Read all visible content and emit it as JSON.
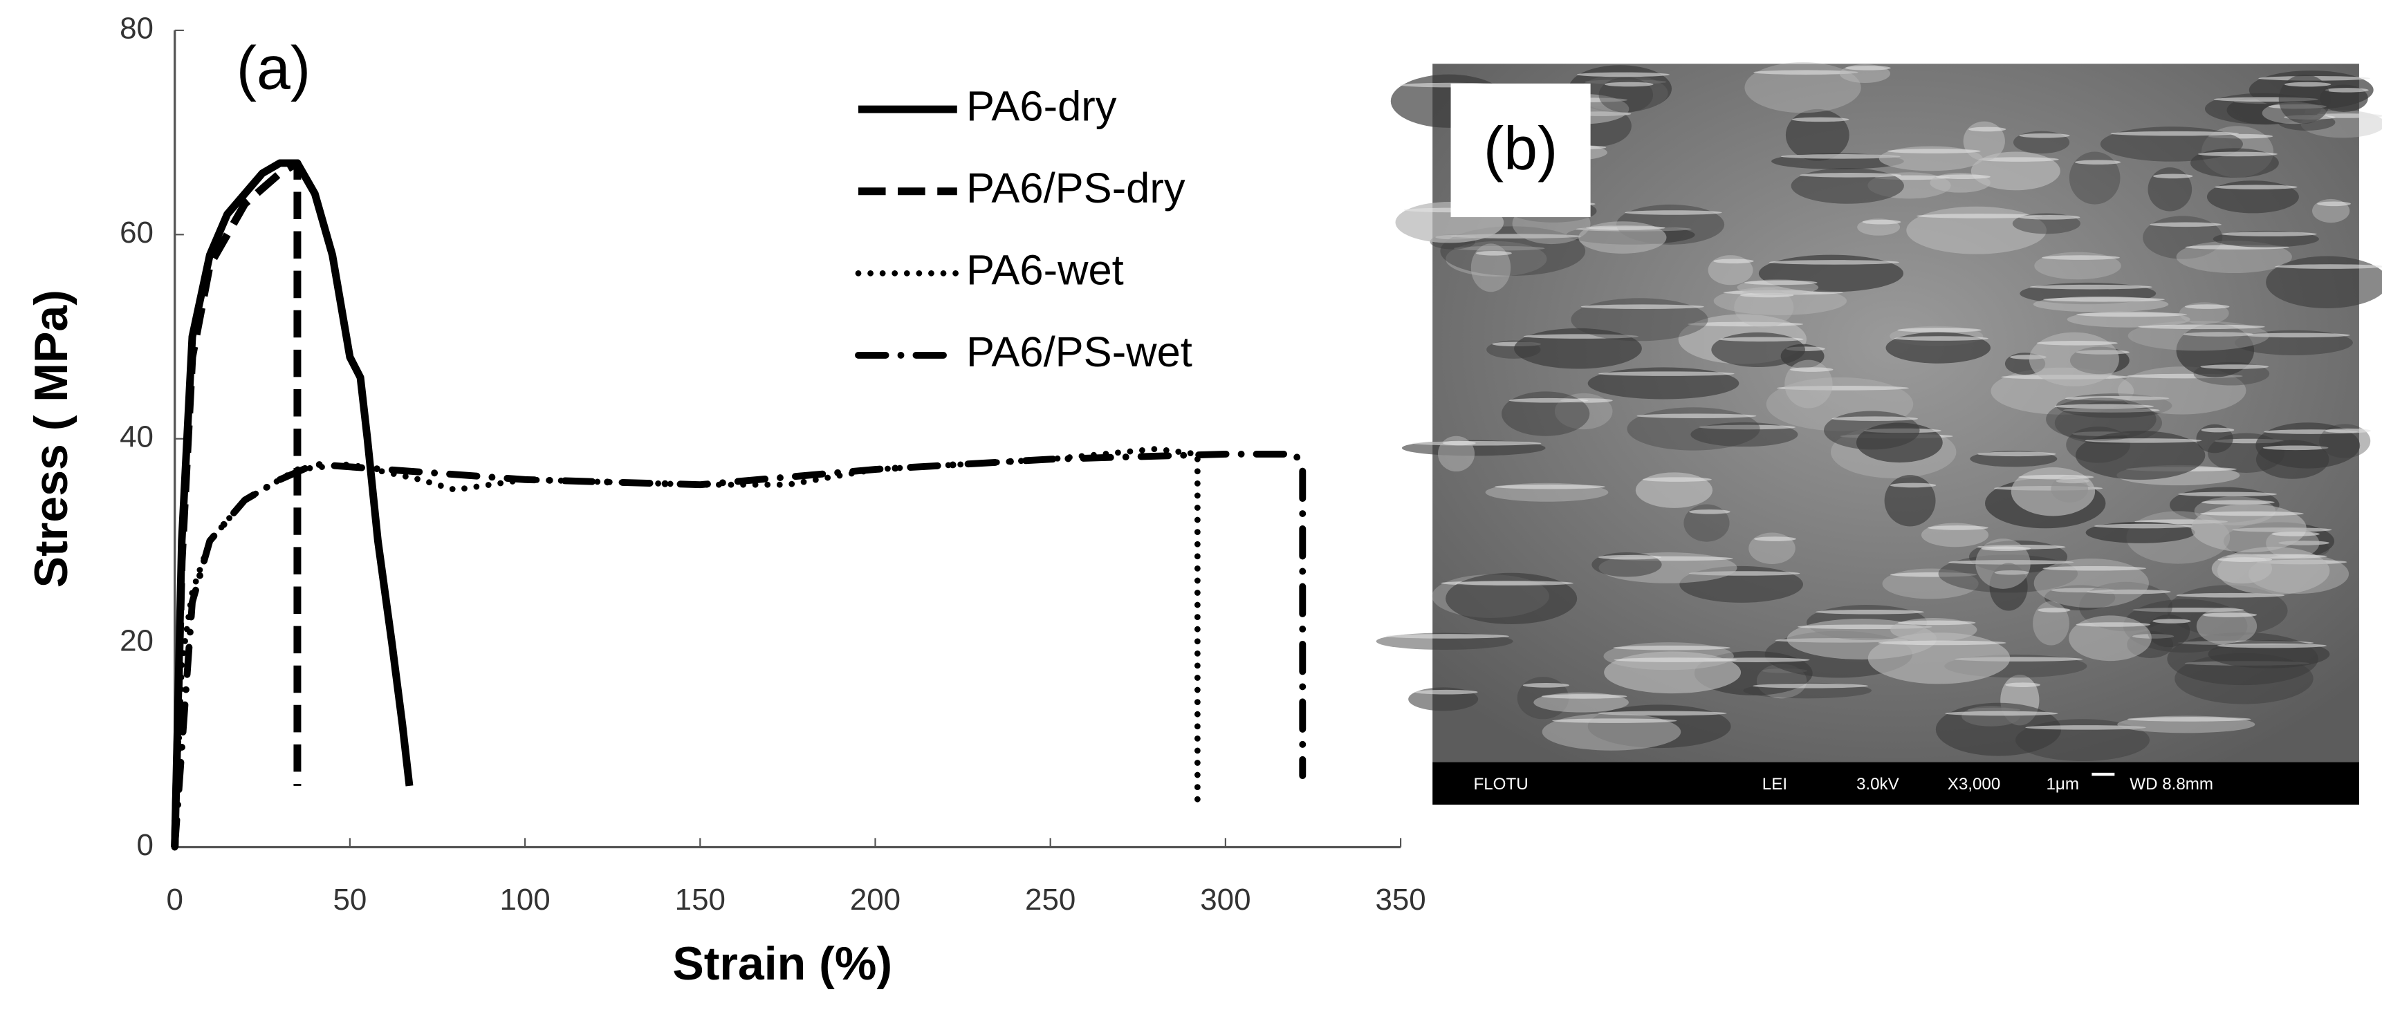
{
  "chart_data": {
    "type": "line",
    "panel_label": "(a)",
    "x_label": "Strain (%)",
    "y_label": "Stress ( MPa)",
    "xlim": [
      0,
      350
    ],
    "xticks": [
      0,
      50,
      100,
      150,
      200,
      250,
      300,
      350
    ],
    "ylim": [
      0,
      80
    ],
    "yticks": [
      0,
      20,
      40,
      60,
      80
    ],
    "grid": false,
    "legend": "upper center",
    "series": [
      {
        "name": "PA6-dry",
        "color": "#000000",
        "style": "solid",
        "x": [
          0,
          2,
          5,
          10,
          15,
          20,
          25,
          30,
          35,
          40,
          45,
          50,
          53,
          55,
          58,
          62,
          65,
          67
        ],
        "values": [
          0,
          30,
          50,
          58,
          62,
          64,
          66,
          67,
          67,
          64,
          58,
          48,
          46,
          40,
          30,
          20,
          12,
          6
        ]
      },
      {
        "name": "PA6/PS-dry",
        "color": "#000000",
        "style": "dashed",
        "x": [
          0,
          2,
          5,
          10,
          20,
          30,
          35,
          35
        ],
        "values": [
          0,
          28,
          48,
          57,
          63,
          66,
          67,
          6
        ]
      },
      {
        "name": "PA6-wet",
        "color": "#000000",
        "style": "dotted",
        "x": [
          0,
          2,
          5,
          10,
          20,
          30,
          35,
          50,
          70,
          80,
          100,
          150,
          175,
          200,
          250,
          280,
          292,
          292
        ],
        "values": [
          0,
          18,
          25,
          30,
          34,
          36,
          37,
          37.5,
          36,
          35,
          36,
          35.5,
          35.5,
          37,
          38,
          39,
          38.5,
          4
        ]
      },
      {
        "name": "PA6/PS-wet",
        "color": "#000000",
        "style": "dashdot",
        "x": [
          0,
          5,
          10,
          20,
          30,
          40,
          60,
          100,
          150,
          200,
          250,
          300,
          320,
          322,
          322
        ],
        "values": [
          0,
          24,
          30,
          34,
          36,
          37.5,
          37,
          36,
          35.5,
          37,
          38,
          38.5,
          38.5,
          37,
          7
        ]
      }
    ]
  },
  "image_panel": {
    "panel_label": "(b)",
    "info_bar": [
      "FLOTU",
      "LEI",
      "3.0kV",
      "X3,000",
      "1μm",
      "WD 8.8mm"
    ]
  }
}
